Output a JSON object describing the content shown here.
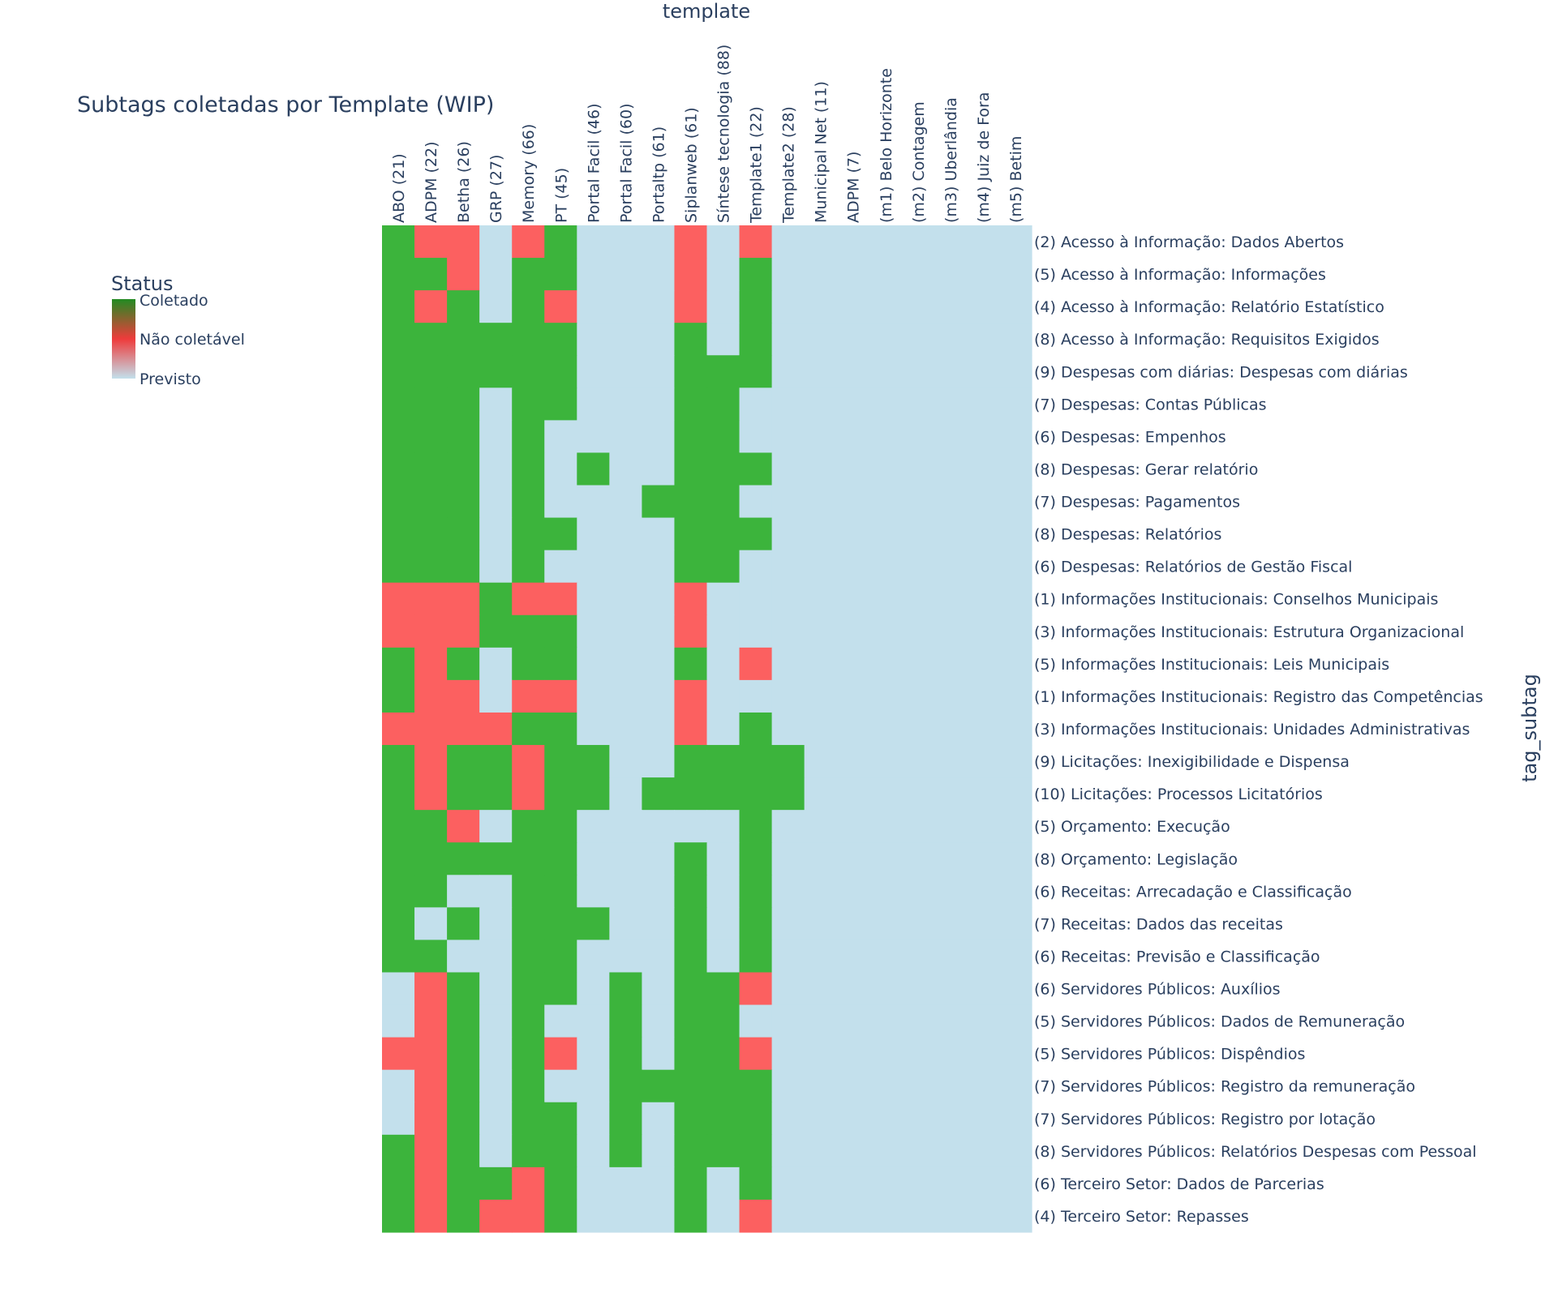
{
  "chart_data": {
    "type": "heatmap",
    "title": "Subtags coletadas por Template (WIP)",
    "xlabel": "template",
    "ylabel": "tag_subtag",
    "legend": {
      "title": "Status",
      "items": [
        "Coletado",
        "Não coletável",
        "Previsto"
      ],
      "placement": "top-left"
    },
    "colors": {
      "C": "#3cb43c",
      "N": "#fc6060",
      "P": "#c3e0ec"
    },
    "colorscale": [
      "#228b22",
      "#ee3b3b",
      "#c3e0ec"
    ],
    "x": [
      "ABO (21)",
      "ADPM (22)",
      "Betha (26)",
      "GRP (27)",
      "Memory (66)",
      "PT (45)",
      "Portal Facil (46)",
      "Portal Facil (60)",
      "Portaltp (61)",
      "Siplanweb (61)",
      "Síntese tecnologia (88)",
      "Template1 (22)",
      "Template2 (28)",
      "Municipal Net (11)",
      "ADPM (7)",
      "(m1) Belo Horizonte",
      "(m2) Contagem",
      "(m3) Uberlândia",
      "(m4) Juiz de Fora",
      "(m5) Betim"
    ],
    "y": [
      "(2) Acesso à Informação: Dados Abertos",
      "(5) Acesso à Informação: Informações",
      "(4) Acesso à Informação: Relatório Estatístico",
      "(8) Acesso à Informação: Requisitos Exigidos",
      "(9) Despesas com diárias: Despesas com diárias",
      "(7) Despesas: Contas Públicas",
      "(6) Despesas: Empenhos",
      "(8) Despesas: Gerar relatório",
      "(7) Despesas: Pagamentos",
      "(8) Despesas: Relatórios",
      "(6) Despesas: Relatórios de Gestão Fiscal",
      "(1) Informações Institucionais: Conselhos Municipais",
      "(3) Informações Institucionais: Estrutura Organizacional",
      "(5) Informações Institucionais: Leis Municipais",
      "(1) Informações Institucionais: Registro das Competências",
      "(3) Informações Institucionais: Unidades Administrativas",
      "(9) Licitações: Inexigibilidade e Dispensa",
      "(10) Licitações: Processos Licitatórios",
      "(5) Orçamento: Execução",
      "(8) Orçamento: Legislação",
      "(6) Receitas: Arrecadação e Classificação",
      "(7) Receitas: Dados das receitas",
      "(6) Receitas: Previsão e Classificação",
      "(6) Servidores Públicos: Auxílios",
      "(5) Servidores Públicos: Dados de Remuneração",
      "(5) Servidores Públicos: Dispêndios",
      "(7) Servidores Públicos: Registro da remuneração",
      "(7) Servidores Públicos: Registro por lotação",
      "(8) Servidores Públicos: Relatórios Despesas com Pessoal",
      "(6) Terceiro Setor: Dados de Parcerias",
      "(4) Terceiro Setor: Repasses"
    ],
    "z": [
      "CNNPNCPPPNPNPPPPPPPP",
      "CCNPCCPPPNPCPPPPPPPP",
      "CNCPCNPPPNPCPPPPPPPP",
      "CCCCCCPPPCPCPPPPPPPP",
      "CCCCCCPPPCCCPPPPPPPP",
      "CCCPCCPPPCCPPPPPPPPP",
      "CCCPCPPPPCCPPPPPPPPP",
      "CCCPCPCPPCCCPPPPPPPP",
      "CCCPCPPPCCCPPPPPPPPP",
      "CCCPCCPPPCCCPPPPPPPP",
      "CCCPCPPPPCCPPPPPPPPP",
      "NNNCNNPPPNPPPPPPPPPP",
      "NNNCCCPPPNPPPPPPPPPP",
      "CNCPCCPPPCPNPPPPPPPP",
      "CNNPNNPPPNPPPPPPPPPP",
      "NNNNCCPPPNPCPPPPPPPP",
      "CNCCNCCPPCCCCPPPPPPP",
      "CNCCNCCPCCCCCPPPPPPP",
      "CCNPCCPPPPPCPPPPPPPP",
      "CCCCCCPPPCPCPPPPPPPP",
      "CCPPCCPPPCPCPPPPPPPP",
      "CPCPCCCPPCPCPPPPPPPP",
      "CCPPCCPPPCPCPPPPPPPP",
      "PNCPCCPCPCCNPPPPPPPP",
      "PNCPCPPCPCCPPPPPPPPP",
      "NNCPCNPCPCCNPPPPPPPP",
      "PNCPCPPCCCCCPPPPPPPP",
      "PNCPCCPCPCCCPPPPPPPP",
      "CNCPCCPCPCCCPPPPPPPP",
      "CNCCNCPPPCPCPPPPPPPP",
      "CNCNNCPPPCPNPPPPPPPP"
    ]
  }
}
